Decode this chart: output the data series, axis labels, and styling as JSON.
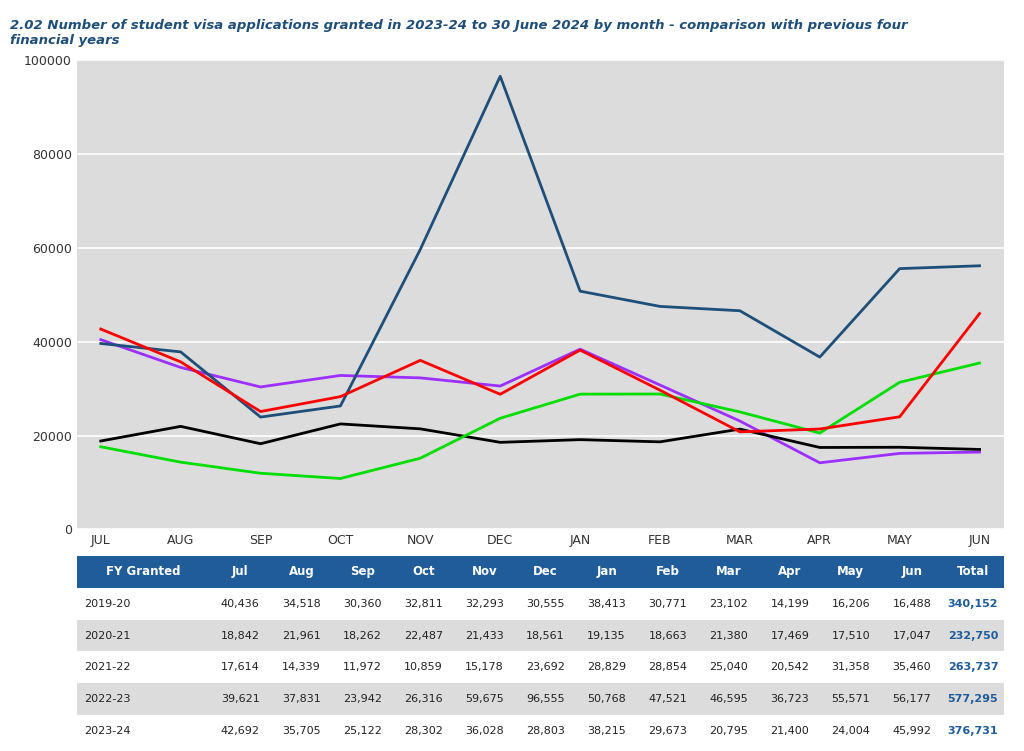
{
  "title_line1": "2.02 Number of student visa applications granted in 2023-24 to 30 June 2024 by month - comparison with previous four",
  "title_line2": "financial years",
  "months": [
    "JUL",
    "AUG",
    "SEP",
    "OCT",
    "NOV",
    "DEC",
    "JAN",
    "FEB",
    "MAR",
    "APR",
    "MAY",
    "JUN"
  ],
  "series": {
    "2019-20": {
      "values": [
        40436,
        34518,
        30360,
        32811,
        32293,
        30555,
        38413,
        30771,
        23102,
        14199,
        16206,
        16488
      ],
      "color": "#9B30FF",
      "total": "340,152"
    },
    "2020-21": {
      "values": [
        18842,
        21961,
        18262,
        22487,
        21433,
        18561,
        19135,
        18663,
        21380,
        17469,
        17510,
        17047
      ],
      "color": "#000000",
      "total": "232,750"
    },
    "2021-22": {
      "values": [
        17614,
        14339,
        11972,
        10859,
        15178,
        23692,
        28829,
        28854,
        25040,
        20542,
        31358,
        35460
      ],
      "color": "#00DD00",
      "total": "263,737"
    },
    "2022-23": {
      "values": [
        39621,
        37831,
        23942,
        26316,
        59675,
        96555,
        50768,
        47521,
        46595,
        36723,
        55571,
        56177
      ],
      "color": "#1F4E79",
      "total": "577,295"
    },
    "2023-24": {
      "values": [
        42692,
        35705,
        25122,
        28302,
        36028,
        28803,
        38215,
        29673,
        20795,
        21400,
        24004,
        45992
      ],
      "color": "#FF0000",
      "total": "376,731"
    }
  },
  "series_order": [
    "2019-20",
    "2020-21",
    "2021-22",
    "2022-23",
    "2023-24"
  ],
  "ylim": [
    0,
    100000
  ],
  "yticks": [
    0,
    20000,
    40000,
    60000,
    80000,
    100000
  ],
  "chart_bg": "#DCDCDC",
  "fig_bg": "#FFFFFF",
  "table_header_bg": "#1F5C99",
  "table_header_text": "#FFFFFF",
  "table_row_bg_odd": "#FFFFFF",
  "table_row_bg_even": "#DCDCDC",
  "table_text_color": "#222222",
  "table_total_color": "#1F5C99",
  "title_color": "#1F4E79",
  "grid_color": "#FFFFFF",
  "months_short": [
    "Jul",
    "Aug",
    "Sep",
    "Oct",
    "Nov",
    "Dec",
    "Jan",
    "Feb",
    "Mar",
    "Apr",
    "May",
    "Jun",
    "Total"
  ]
}
